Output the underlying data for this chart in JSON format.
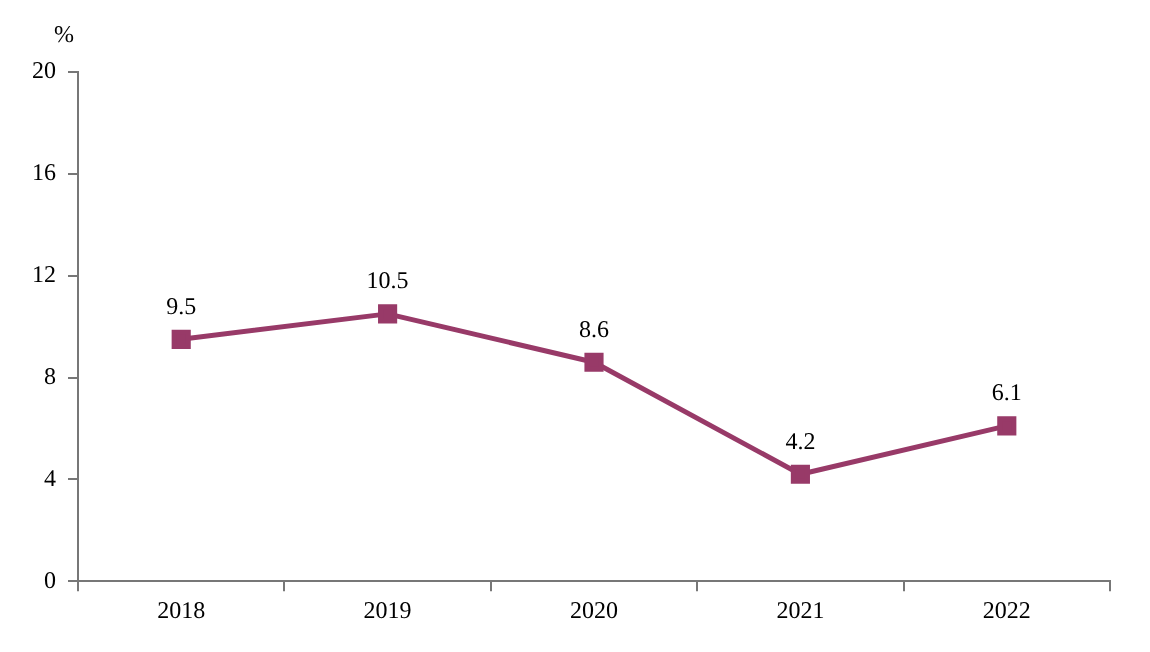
{
  "chart_data": {
    "type": "line",
    "ylabel": "%",
    "categories": [
      "2018",
      "2019",
      "2020",
      "2021",
      "2022"
    ],
    "series": [
      {
        "color": "#983a68",
        "values": [
          9.5,
          10.5,
          8.6,
          4.2,
          6.1
        ]
      }
    ],
    "ylim": [
      0,
      20
    ],
    "yticks": [
      0,
      4,
      8,
      12,
      16,
      20
    ],
    "grid": false,
    "legend": false,
    "marker": "square",
    "line_style": "solid",
    "data_labels": true
  }
}
